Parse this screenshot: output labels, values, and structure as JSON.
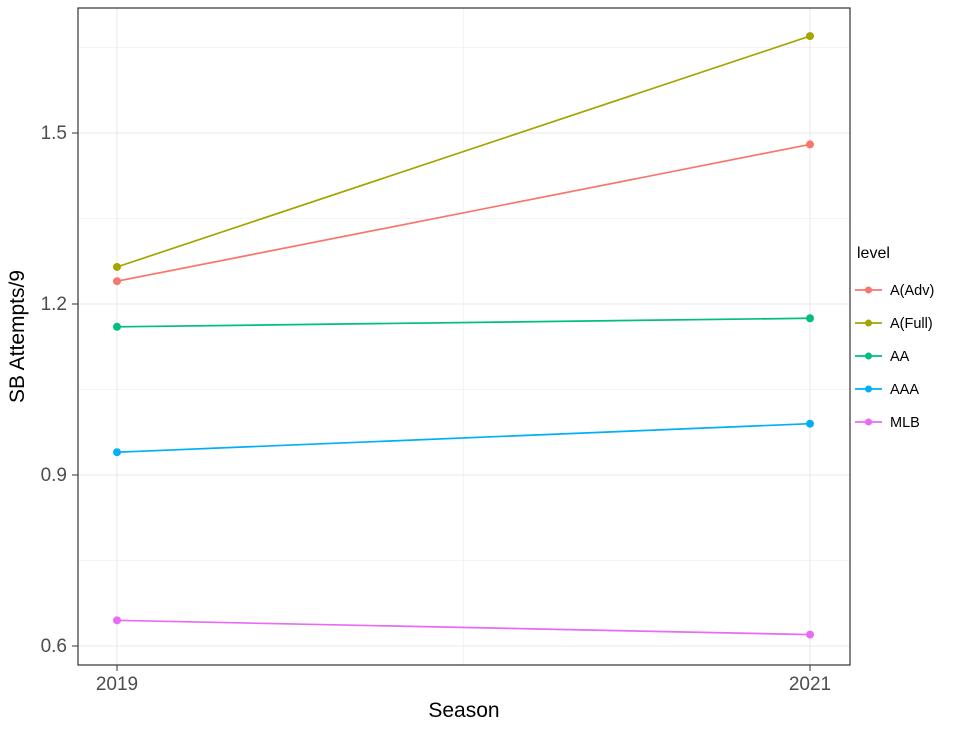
{
  "chart_data": {
    "type": "line",
    "title": "",
    "xlabel": "Season",
    "ylabel": "SB Attempts/9",
    "x": [
      2019,
      2021
    ],
    "x_tick_labels": [
      "2019",
      "2021"
    ],
    "y_ticks": [
      0.6,
      0.9,
      1.2,
      1.5
    ],
    "y_minor_ticks": [
      0.75,
      1.05,
      1.35,
      1.65
    ],
    "x_minor_ticks": [
      2020
    ],
    "ylim": [
      0.567,
      1.72
    ],
    "grid": true,
    "legend": {
      "title": "level",
      "position": "right"
    },
    "series": [
      {
        "name": "A(Adv)",
        "color": "#F8766D",
        "values": [
          1.24,
          1.48
        ]
      },
      {
        "name": "A(Full)",
        "color": "#A3A500",
        "values": [
          1.265,
          1.67
        ]
      },
      {
        "name": "AA",
        "color": "#00BF7D",
        "values": [
          1.16,
          1.175
        ]
      },
      {
        "name": "AAA",
        "color": "#00B0F6",
        "values": [
          0.94,
          0.99
        ]
      },
      {
        "name": "MLB",
        "color": "#E76BF3",
        "values": [
          0.645,
          0.62
        ]
      }
    ],
    "colors": {
      "panel_border": "#333333",
      "grid_major": "#e9e9e9",
      "grid_minor": "#f4f4f4",
      "tick_text": "#4d4d4d",
      "axis_title_text": "#000000",
      "legend_text": "#000000"
    }
  }
}
